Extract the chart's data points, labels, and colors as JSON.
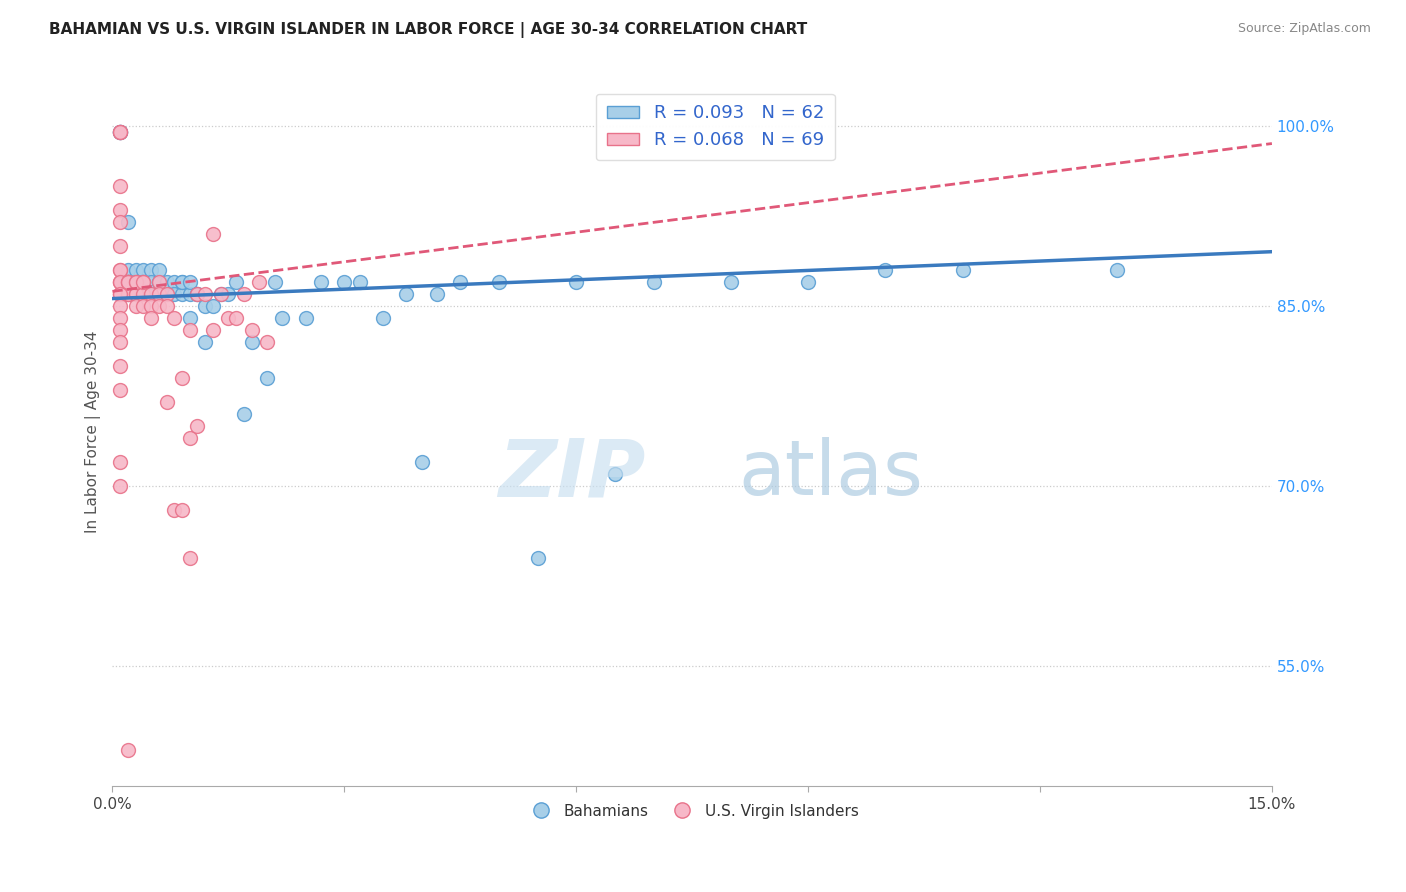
{
  "title": "BAHAMIAN VS U.S. VIRGIN ISLANDER IN LABOR FORCE | AGE 30-34 CORRELATION CHART",
  "source": "Source: ZipAtlas.com",
  "ylabel": "In Labor Force | Age 30-34",
  "xlim": [
    0.0,
    0.15
  ],
  "ylim": [
    0.45,
    1.04
  ],
  "ytick_labels_right": [
    "55.0%",
    "70.0%",
    "85.0%",
    "100.0%"
  ],
  "ytick_vals_right": [
    0.55,
    0.7,
    0.85,
    1.0
  ],
  "blue_color": "#a8cfe8",
  "pink_color": "#f7b8c8",
  "blue_edge_color": "#5a9fd4",
  "pink_edge_color": "#e8728a",
  "blue_line_color": "#3a7abf",
  "pink_line_color": "#e05878",
  "legend_blue_label": "R = 0.093   N = 62",
  "legend_pink_label": "R = 0.068   N = 69",
  "legend_label_bahamians": "Bahamians",
  "legend_label_virgin": "U.S. Virgin Islanders",
  "blue_x": [
    0.001,
    0.001,
    0.001,
    0.002,
    0.002,
    0.002,
    0.002,
    0.003,
    0.003,
    0.003,
    0.003,
    0.004,
    0.004,
    0.004,
    0.005,
    0.005,
    0.005,
    0.006,
    0.006,
    0.006,
    0.007,
    0.007,
    0.008,
    0.008,
    0.009,
    0.009,
    0.009,
    0.01,
    0.01,
    0.01,
    0.011,
    0.011,
    0.012,
    0.012,
    0.013,
    0.014,
    0.015,
    0.016,
    0.017,
    0.018,
    0.02,
    0.021,
    0.022,
    0.025,
    0.027,
    0.03,
    0.032,
    0.035,
    0.038,
    0.04,
    0.042,
    0.045,
    0.05,
    0.055,
    0.06,
    0.065,
    0.07,
    0.08,
    0.09,
    0.1,
    0.11,
    0.13
  ],
  "blue_y": [
    0.995,
    0.995,
    0.995,
    0.92,
    0.88,
    0.87,
    0.86,
    0.87,
    0.86,
    0.87,
    0.88,
    0.88,
    0.87,
    0.87,
    0.86,
    0.88,
    0.87,
    0.87,
    0.87,
    0.88,
    0.86,
    0.87,
    0.87,
    0.86,
    0.86,
    0.87,
    0.87,
    0.86,
    0.84,
    0.87,
    0.86,
    0.86,
    0.85,
    0.82,
    0.85,
    0.86,
    0.86,
    0.87,
    0.76,
    0.82,
    0.79,
    0.87,
    0.84,
    0.84,
    0.87,
    0.87,
    0.87,
    0.84,
    0.86,
    0.72,
    0.86,
    0.87,
    0.87,
    0.64,
    0.87,
    0.71,
    0.87,
    0.87,
    0.87,
    0.88,
    0.88,
    0.88
  ],
  "pink_x": [
    0.001,
    0.001,
    0.001,
    0.001,
    0.001,
    0.002,
    0.002,
    0.002,
    0.002,
    0.003,
    0.003,
    0.003,
    0.003,
    0.004,
    0.004,
    0.004,
    0.005,
    0.005,
    0.005,
    0.006,
    0.006,
    0.006,
    0.007,
    0.007,
    0.007,
    0.008,
    0.008,
    0.009,
    0.009,
    0.01,
    0.01,
    0.01,
    0.011,
    0.011,
    0.012,
    0.013,
    0.013,
    0.014,
    0.015,
    0.016,
    0.017,
    0.018,
    0.019,
    0.02,
    0.001,
    0.001,
    0.001,
    0.001,
    0.001,
    0.001,
    0.001,
    0.001,
    0.001,
    0.001,
    0.001,
    0.001,
    0.001,
    0.001,
    0.001,
    0.001,
    0.001,
    0.001,
    0.002,
    0.002,
    0.002,
    0.003,
    0.003,
    0.004,
    0.002
  ],
  "pink_y": [
    0.88,
    0.87,
    0.87,
    0.86,
    0.86,
    0.87,
    0.87,
    0.86,
    0.86,
    0.87,
    0.86,
    0.86,
    0.85,
    0.87,
    0.86,
    0.85,
    0.86,
    0.85,
    0.84,
    0.87,
    0.86,
    0.85,
    0.77,
    0.86,
    0.85,
    0.68,
    0.84,
    0.79,
    0.68,
    0.74,
    0.83,
    0.64,
    0.86,
    0.75,
    0.86,
    0.83,
    0.91,
    0.86,
    0.84,
    0.84,
    0.86,
    0.83,
    0.87,
    0.82,
    0.995,
    0.995,
    0.995,
    0.95,
    0.93,
    0.92,
    0.9,
    0.88,
    0.87,
    0.86,
    0.85,
    0.84,
    0.83,
    0.82,
    0.8,
    0.78,
    0.72,
    0.7,
    0.87,
    0.87,
    0.87,
    0.87,
    0.87,
    0.87,
    0.48
  ]
}
